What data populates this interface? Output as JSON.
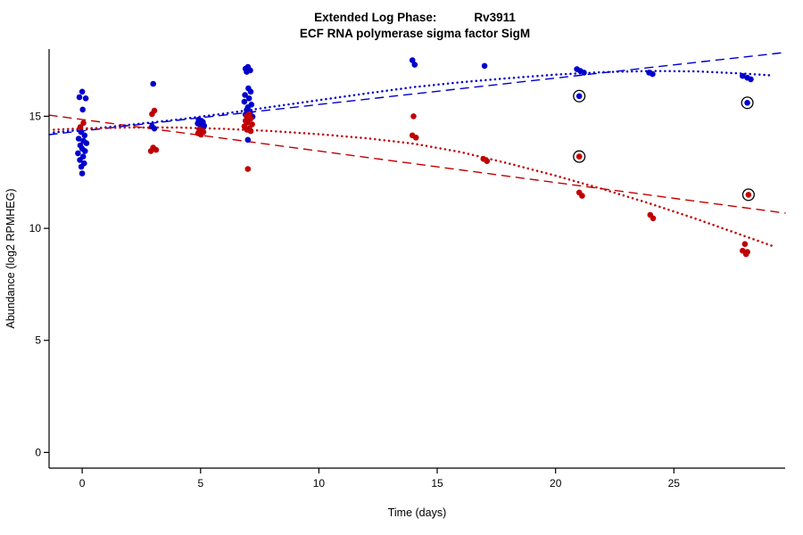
{
  "title": {
    "prefix": "Extended Log Phase:",
    "gene": "Rv3911"
  },
  "subtitle": "ECF RNA polymerase sigma factor SigM",
  "chart_data": {
    "type": "scatter",
    "title": "Extended Log Phase:  Rv3911",
    "subtitle": "ECF RNA polymerase sigma factor SigM",
    "xlabel": "Time  (days)",
    "ylabel": "Abundance  (log2 RPMHEG)",
    "xlim": [
      -1.4,
      29.7
    ],
    "ylim": [
      -0.7,
      18.0
    ],
    "xticks": [
      0,
      5,
      10,
      15,
      20,
      25
    ],
    "yticks": [
      0,
      5,
      10,
      15
    ],
    "grid": false,
    "legend": "none",
    "colors": {
      "blue": "#0000CD",
      "red": "#C00000",
      "axis": "#000000",
      "outlier_ring": "#000000"
    },
    "series": [
      {
        "name": "condition-blue",
        "color": "#0000CD",
        "points": [
          [
            0.0,
            16.1
          ],
          [
            -0.12,
            15.85
          ],
          [
            0.15,
            15.8
          ],
          [
            0.02,
            15.3
          ],
          [
            -0.05,
            14.3
          ],
          [
            0.1,
            14.15
          ],
          [
            -0.15,
            14.0
          ],
          [
            0.05,
            13.9
          ],
          [
            0.18,
            13.8
          ],
          [
            -0.08,
            13.7
          ],
          [
            0.0,
            13.55
          ],
          [
            0.12,
            13.45
          ],
          [
            -0.18,
            13.35
          ],
          [
            0.04,
            13.2
          ],
          [
            -0.1,
            13.05
          ],
          [
            0.08,
            12.9
          ],
          [
            -0.04,
            12.75
          ],
          [
            0.0,
            12.45
          ],
          [
            3.0,
            16.45
          ],
          [
            2.95,
            14.55
          ],
          [
            3.05,
            14.45
          ],
          [
            4.92,
            14.85
          ],
          [
            5.03,
            14.8
          ],
          [
            5.1,
            14.74
          ],
          [
            4.88,
            14.68
          ],
          [
            5.0,
            14.62
          ],
          [
            5.15,
            14.58
          ],
          [
            7.0,
            17.2
          ],
          [
            6.9,
            17.12
          ],
          [
            7.1,
            17.05
          ],
          [
            6.95,
            16.98
          ],
          [
            7.02,
            16.25
          ],
          [
            7.12,
            16.1
          ],
          [
            6.88,
            15.95
          ],
          [
            7.05,
            15.8
          ],
          [
            6.85,
            15.65
          ],
          [
            7.15,
            15.52
          ],
          [
            7.0,
            15.4
          ],
          [
            6.95,
            15.28
          ],
          [
            7.1,
            15.18
          ],
          [
            6.9,
            15.08
          ],
          [
            7.2,
            14.98
          ],
          [
            7.0,
            13.95
          ],
          [
            13.95,
            17.5
          ],
          [
            14.05,
            17.3
          ],
          [
            17.0,
            17.25
          ],
          [
            20.9,
            17.1
          ],
          [
            21.05,
            17.02
          ],
          [
            21.2,
            16.95
          ],
          [
            23.95,
            16.95
          ],
          [
            24.1,
            16.88
          ],
          [
            27.9,
            16.8
          ],
          [
            28.1,
            16.72
          ],
          [
            28.25,
            16.65
          ]
        ]
      },
      {
        "name": "condition-red",
        "color": "#C00000",
        "points": [
          [
            0.05,
            14.7
          ],
          [
            -0.08,
            14.52
          ],
          [
            3.05,
            15.25
          ],
          [
            2.95,
            15.1
          ],
          [
            3.0,
            13.6
          ],
          [
            3.12,
            13.5
          ],
          [
            2.9,
            13.45
          ],
          [
            4.95,
            14.42
          ],
          [
            5.05,
            14.36
          ],
          [
            5.12,
            14.3
          ],
          [
            4.9,
            14.24
          ],
          [
            5.02,
            14.18
          ],
          [
            7.05,
            15.1
          ],
          [
            6.95,
            15.0
          ],
          [
            7.12,
            14.9
          ],
          [
            6.9,
            14.8
          ],
          [
            7.0,
            14.72
          ],
          [
            7.18,
            14.64
          ],
          [
            6.85,
            14.55
          ],
          [
            7.06,
            14.46
          ],
          [
            6.96,
            14.4
          ],
          [
            7.12,
            14.34
          ],
          [
            7.0,
            12.65
          ],
          [
            14.0,
            15.0
          ],
          [
            13.95,
            14.15
          ],
          [
            14.1,
            14.05
          ],
          [
            16.95,
            13.1
          ],
          [
            17.1,
            13.0
          ],
          [
            21.0,
            11.6
          ],
          [
            21.12,
            11.45
          ],
          [
            24.0,
            10.6
          ],
          [
            24.12,
            10.45
          ],
          [
            28.0,
            9.3
          ],
          [
            27.9,
            9.0
          ],
          [
            28.1,
            8.95
          ],
          [
            28.05,
            8.85
          ]
        ]
      }
    ],
    "circled_points": [
      {
        "x": 21.0,
        "y": 15.9,
        "series": "condition-blue"
      },
      {
        "x": 28.1,
        "y": 15.6,
        "series": "condition-blue"
      },
      {
        "x": 21.0,
        "y": 13.2,
        "series": "condition-red"
      },
      {
        "x": 28.15,
        "y": 11.5,
        "series": "condition-red"
      }
    ],
    "fit_lines": [
      {
        "name": "blue-linear-fit",
        "color": "#0000CD",
        "style": "dashed",
        "points": [
          [
            -1.4,
            14.18
          ],
          [
            29.7,
            17.85
          ]
        ]
      },
      {
        "name": "red-linear-fit",
        "color": "#C00000",
        "style": "dashed",
        "points": [
          [
            -1.4,
            15.05
          ],
          [
            29.7,
            10.68
          ]
        ]
      },
      {
        "name": "blue-smooth-fit",
        "color": "#0000CD",
        "style": "dotted",
        "points": [
          [
            -1.2,
            14.28
          ],
          [
            0,
            14.4
          ],
          [
            2,
            14.62
          ],
          [
            4,
            14.85
          ],
          [
            6,
            15.12
          ],
          [
            8,
            15.42
          ],
          [
            10,
            15.72
          ],
          [
            12,
            16.02
          ],
          [
            14,
            16.3
          ],
          [
            16,
            16.52
          ],
          [
            18,
            16.7
          ],
          [
            20,
            16.86
          ],
          [
            22,
            16.97
          ],
          [
            24,
            17.02
          ],
          [
            26,
            17.0
          ],
          [
            28,
            16.9
          ],
          [
            29.2,
            16.82
          ]
        ]
      },
      {
        "name": "red-smooth-fit",
        "color": "#C00000",
        "style": "dotted",
        "points": [
          [
            -1.2,
            14.4
          ],
          [
            0,
            14.46
          ],
          [
            2,
            14.5
          ],
          [
            4,
            14.5
          ],
          [
            6,
            14.44
          ],
          [
            8,
            14.34
          ],
          [
            10,
            14.2
          ],
          [
            12,
            14.02
          ],
          [
            14,
            13.78
          ],
          [
            16,
            13.4
          ],
          [
            18,
            12.9
          ],
          [
            20,
            12.35
          ],
          [
            22,
            11.75
          ],
          [
            24,
            11.1
          ],
          [
            26,
            10.4
          ],
          [
            28,
            9.65
          ],
          [
            29.2,
            9.2
          ]
        ]
      }
    ]
  }
}
